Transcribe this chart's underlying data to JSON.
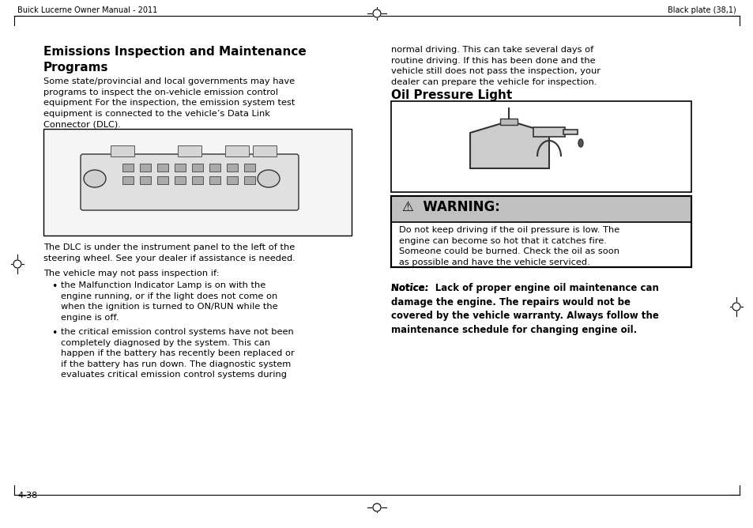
{
  "bg_color": "#ffffff",
  "page_bg": "#ffffff",
  "header_left": "Buick Lucerne Owner Manual - 2011",
  "header_right": "Black plate (38,1)",
  "footer_text": "4-38",
  "title_left": "Emissions Inspection and Maintenance\nPrograms",
  "body_left_1": "Some state/provincial and local governments may have\nprograms to inspect the on-vehicle emission control\nequipment For the inspection, the emission system test\nequipment is connected to the vehicle’s Data Link\nConnector (DLC).",
  "body_left_2": "The DLC is under the instrument panel to the left of the\nsteering wheel. See your dealer if assistance is needed.",
  "body_left_3": "The vehicle may not pass inspection if:",
  "bullet_1": "the Malfunction Indicator Lamp is on with the\nengine running, or if the light does not come on\nwhen the ignition is turned to ON/RUN while the\nengine is off.",
  "bullet_2": "the critical emission control systems have not been\ncompletely diagnosed by the system. This can\nhappen if the battery has recently been replaced or\nif the battery has run down. The diagnostic system\nevaluates critical emission control systems during",
  "body_right_1": "normal driving. This can take several days of\nroutine driving. If this has been done and the\nvehicle still does not pass the inspection, your\ndealer can prepare the vehicle for inspection.",
  "title_right": "Oil Pressure Light",
  "warning_header": "⚠  WARNING:",
  "warning_body": "Do not keep driving if the oil pressure is low. The\nengine can become so hot that it catches fire.\nSomeone could be burned. Check the oil as soon\nas possible and have the vehicle serviced.",
  "notice_text": "Notice:  Lack of proper engine oil maintenance can\ndamage the engine. The repairs would not be\ncovered by the vehicle warranty. Always follow the\nmaintenance schedule for changing engine oil.",
  "warning_bg": "#c8c8c8",
  "warning_border": "#000000",
  "box_border": "#000000",
  "text_color": "#000000",
  "divider_color": "#000000"
}
